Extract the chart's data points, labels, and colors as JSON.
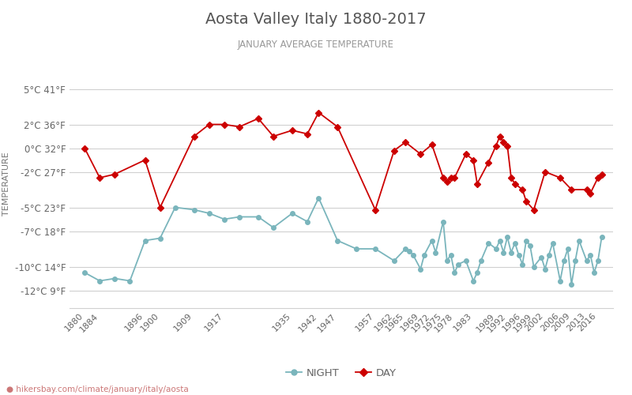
{
  "title": "Aosta Valley Italy 1880-2017",
  "subtitle": "JANUARY AVERAGE TEMPERATURE",
  "ylabel": "TEMPERATURE",
  "footer": "hikersbay.com/climate/january/italy/aosta",
  "legend_night": "NIGHT",
  "legend_day": "DAY",
  "night_color": "#7ab5bc",
  "day_color": "#cc0000",
  "bg_color": "#ffffff",
  "grid_color": "#d0d0d0",
  "title_color": "#555555",
  "subtitle_color": "#999999",
  "ylabel_color": "#777777",
  "tick_label_color": "#666666",
  "ytick_labels": [
    "5°C 41°F",
    "2°C 36°F",
    "0°C 32°F",
    "-2°C 27°F",
    "-5°C 23°F",
    "-7°C 18°F",
    "-10°C 14°F",
    "-12°C 9°F"
  ],
  "ytick_values": [
    5,
    2,
    0,
    -2,
    -5,
    -7,
    -10,
    -12
  ],
  "ylim": [
    -13.5,
    7.5
  ],
  "xlim": [
    1876,
    2020
  ],
  "night_years": [
    1880,
    1884,
    1888,
    1892,
    1896,
    1900,
    1904,
    1909,
    1913,
    1917,
    1921,
    1926,
    1930,
    1935,
    1939,
    1942,
    1947,
    1952,
    1957,
    1962,
    1965,
    1966,
    1967,
    1969,
    1970,
    1972,
    1973,
    1975,
    1976,
    1977,
    1978,
    1979,
    1981,
    1983,
    1984,
    1985,
    1987,
    1989,
    1990,
    1991,
    1992,
    1993,
    1994,
    1995,
    1996,
    1997,
    1998,
    1999,
    2001,
    2002,
    2003,
    2004,
    2006,
    2007,
    2008,
    2009,
    2010,
    2011,
    2013,
    2014,
    2015,
    2016,
    2017
  ],
  "night_values": [
    -10.5,
    -11.2,
    -11.0,
    -11.2,
    -7.8,
    -7.6,
    -5.0,
    -5.2,
    -5.5,
    -6.0,
    -5.8,
    -5.8,
    -6.7,
    -5.5,
    -6.2,
    -4.2,
    -7.8,
    -8.5,
    -8.5,
    -9.5,
    -8.5,
    -8.7,
    -9.0,
    -10.2,
    -9.0,
    -7.8,
    -8.8,
    -6.2,
    -9.5,
    -9.0,
    -10.5,
    -9.8,
    -9.5,
    -11.2,
    -10.5,
    -9.5,
    -8.0,
    -8.5,
    -7.8,
    -8.8,
    -7.5,
    -8.8,
    -8.0,
    -9.0,
    -9.8,
    -7.8,
    -8.2,
    -10.0,
    -9.2,
    -10.2,
    -9.0,
    -8.0,
    -11.2,
    -9.5,
    -8.5,
    -11.5,
    -9.5,
    -7.8,
    -9.5,
    -9.0,
    -10.5,
    -9.5,
    -7.5
  ],
  "day_years": [
    1880,
    1884,
    1888,
    1896,
    1900,
    1909,
    1913,
    1917,
    1921,
    1926,
    1930,
    1935,
    1939,
    1942,
    1947,
    1957,
    1962,
    1965,
    1969,
    1972,
    1975,
    1976,
    1977,
    1978,
    1981,
    1983,
    1984,
    1987,
    1989,
    1990,
    1991,
    1992,
    1993,
    1994,
    1996,
    1997,
    1999,
    2002,
    2006,
    2009,
    2013,
    2014,
    2016,
    2017
  ],
  "day_values": [
    0.0,
    -2.5,
    -2.2,
    -1.0,
    -5.0,
    1.0,
    2.0,
    2.0,
    1.8,
    2.5,
    1.0,
    1.5,
    1.2,
    3.0,
    1.8,
    -5.2,
    -0.2,
    0.5,
    -0.5,
    0.3,
    -2.5,
    -2.8,
    -2.5,
    -2.5,
    -0.5,
    -1.0,
    -3.0,
    -1.2,
    0.2,
    1.0,
    0.5,
    0.2,
    -2.5,
    -3.0,
    -3.5,
    -4.5,
    -5.2,
    -2.0,
    -2.5,
    -3.5,
    -3.5,
    -3.8,
    -2.5,
    -2.2
  ],
  "xtick_labels": [
    "1880",
    "1884",
    "1896",
    "1900",
    "1909",
    "1917",
    "1935",
    "1942",
    "1947",
    "1957",
    "1962",
    "1965",
    "1969",
    "1972",
    "1975",
    "1978",
    "1983",
    "1989",
    "1992",
    "1996",
    "1999",
    "2002",
    "2006",
    "2009",
    "2013",
    "2016"
  ]
}
